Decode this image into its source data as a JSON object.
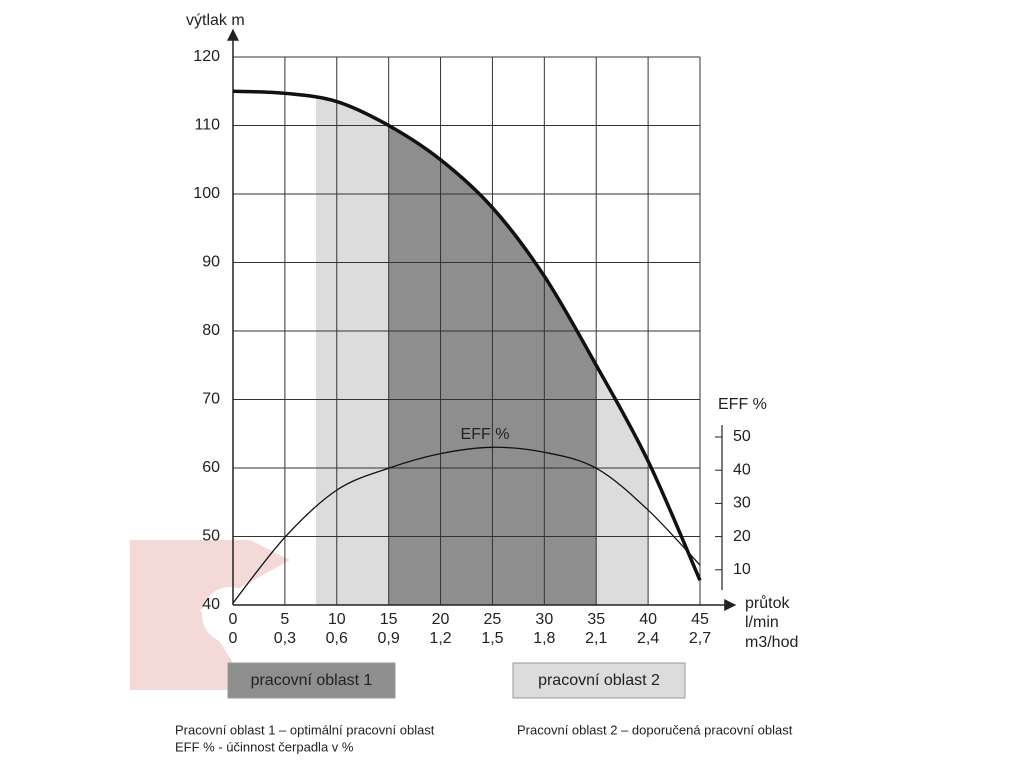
{
  "chart_data": {
    "type": "line",
    "ylabel": "výtlak  m",
    "xlabel": "průtok",
    "x_unit": "l/min",
    "x2_unit": "m3/hod",
    "y2label": "EFF %",
    "x": [
      0,
      5,
      10,
      15,
      20,
      25,
      30,
      35,
      40,
      45
    ],
    "xlim": [
      0,
      45
    ],
    "xticks": [
      0,
      5,
      10,
      15,
      20,
      25,
      30,
      35,
      40,
      45
    ],
    "x2ticks": [
      {
        "value": 0,
        "label": "0"
      },
      {
        "value": 0.3,
        "label": "0,3"
      },
      {
        "value": 0.6,
        "label": "0,6"
      },
      {
        "value": 0.9,
        "label": "0,9"
      },
      {
        "value": 1.2,
        "label": "1,2"
      },
      {
        "value": 1.5,
        "label": "1,5"
      },
      {
        "value": 1.8,
        "label": "1,8"
      },
      {
        "value": 2.1,
        "label": "2,1"
      },
      {
        "value": 2.4,
        "label": "2,4"
      },
      {
        "value": 2.7,
        "label": "2,7"
      }
    ],
    "ylim": [
      40,
      120
    ],
    "yticks": [
      40,
      50,
      60,
      70,
      80,
      90,
      100,
      110,
      120
    ],
    "y2lim": [
      0,
      50
    ],
    "y2ticks": [
      10,
      20,
      30,
      40,
      50
    ],
    "grid": true,
    "series": [
      {
        "color": "#111111",
        "values": [
          115,
          114.7,
          113.5,
          110,
          105,
          98,
          88,
          75,
          61,
          43.6
        ]
      },
      {
        "name": "EFF %",
        "color": "#111111",
        "axis": "y2",
        "values": [
          0,
          19.8,
          34,
          40.6,
          45,
          46.9,
          45.4,
          40.6,
          28,
          11.4
        ]
      }
    ],
    "regions": [
      {
        "name": "pracovní oblast 2",
        "from": 8,
        "to": 40,
        "color": "#dcdcdc"
      },
      {
        "name": "pracovní oblast 1",
        "from": 15,
        "to": 35,
        "color": "#8e8e8e"
      }
    ],
    "notes": [
      "Pracovní oblast 1 – optimální pracovní oblast",
      "EFF % - účinnost čerpadla v %",
      "Pracovní oblast 2 – doporučená pracovní oblast"
    ]
  }
}
